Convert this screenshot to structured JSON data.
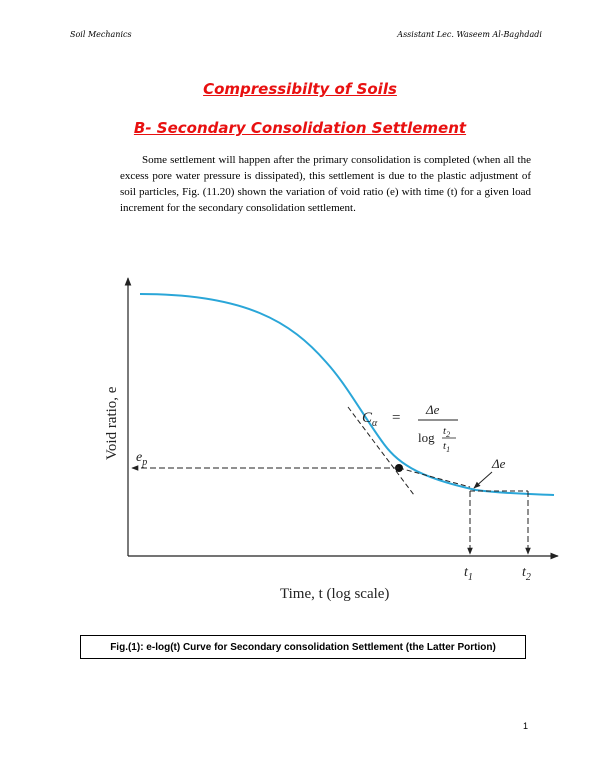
{
  "header": {
    "left": "Soil Mechanics",
    "right": "Assistant Lec. Waseem Al-Baghdadi"
  },
  "title": "Compressibilty of Soils",
  "subtitle": "B- Secondary Consolidation Settlement",
  "paragraph": "Some settlement will happen after the primary consolidation is completed (when all the excess pore water pressure is dissipated), this settlement is due to the plastic adjustment of soil particles, Fig. (11.20) shown the variation of void ratio (e) with time (t) for a given load increment for the secondary consolidation settlement.",
  "figure": {
    "ylabel": "Void ratio, e",
    "xlabel": "Time, t (log scale)",
    "ep_label": "e",
    "ep_sub": "p",
    "c_alpha": "C",
    "c_alpha_sub": "α",
    "equals": "=",
    "delta_e": "Δe",
    "log_label": "log",
    "t2_num": "t",
    "t1_den": "t",
    "sub1": "1",
    "sub2": "2",
    "delta_e_label": "Δe",
    "t1_label": "t",
    "t2_label": "t",
    "curve_color": "#2aa6d8"
  },
  "caption": "Fig.(1): e-log(t) Curve for Secondary consolidation Settlement (the Latter Portion)",
  "page_number": "1"
}
